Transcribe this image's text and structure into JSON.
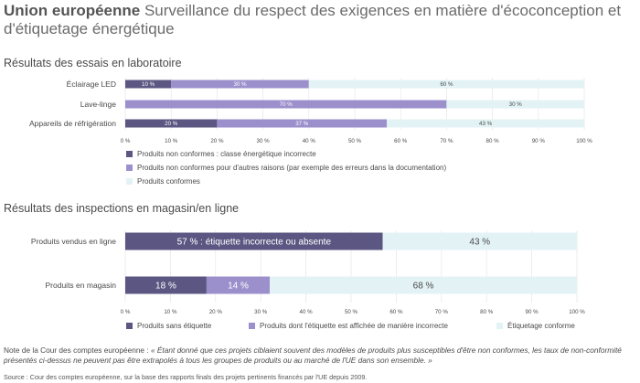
{
  "header": {
    "title_bold": "Union européenne",
    "title_rest": " Surveillance du respect des exigences en matière d'écoconception et d'étiquetage énergétique"
  },
  "colors": {
    "dark": "#5b5682",
    "medium": "#9c90cc",
    "light": "#e3f3f5",
    "label_light": "#ffffff",
    "label_dark": "#4a4a4a"
  },
  "chart_data": [
    {
      "type": "bar",
      "orientation": "horizontal",
      "stacked": true,
      "title": "Résultats des essais en laboratoire",
      "categories": [
        "Éclairage LED",
        "Lave-linge",
        "Appareils de réfrigération"
      ],
      "series": [
        {
          "name": "Produits non conformes : classe énergétique incorrecte",
          "values": [
            10,
            0,
            20
          ],
          "labels": [
            "10 %",
            "",
            "20 %"
          ]
        },
        {
          "name": "Produits non conformes pour d'autres raisons (par exemple des erreurs dans la documentation)",
          "values": [
            30,
            70,
            37
          ],
          "labels": [
            "30 %",
            "70 %",
            "37 %"
          ]
        },
        {
          "name": "Produits conformes",
          "values": [
            60,
            30,
            43
          ],
          "labels": [
            "60 %",
            "30 %",
            "43 %"
          ]
        }
      ],
      "xlim": [
        0,
        100
      ],
      "ticks": [
        "0 %",
        "10 %",
        "20 %",
        "30 %",
        "40 %",
        "50 %",
        "60 %",
        "70 %",
        "80 %",
        "90 %",
        "100 %"
      ],
      "legend_position": "bottom"
    },
    {
      "type": "bar",
      "orientation": "horizontal",
      "stacked": true,
      "title": "Résultats des inspections en magasin/en ligne",
      "categories": [
        "Produits vendus en ligne",
        "Produits en magasin"
      ],
      "series": [
        {
          "name": "Produits sans étiquette",
          "values": [
            57,
            18
          ],
          "labels": [
            "57 % : étiquette incorrecte ou absente",
            "18 %"
          ]
        },
        {
          "name": "Produits dont l'étiquette est affichée de manière incorrecte",
          "values": [
            0,
            14
          ],
          "labels": [
            "",
            "14 %"
          ]
        },
        {
          "name": "Étiquetage conforme",
          "values": [
            43,
            68
          ],
          "labels": [
            "43 %",
            "68 %"
          ]
        }
      ],
      "xlim": [
        0,
        100
      ],
      "ticks": [
        "0 %",
        "10 %",
        "20 %",
        "30 %",
        "40 %",
        "50 %",
        "60 %",
        "70 %",
        "80 %",
        "90 %",
        "100 %"
      ],
      "legend_position": "bottom"
    }
  ],
  "note": {
    "prefix": "Note de la Cour des comptes européenne : ",
    "quote": "« Étant donné que ces projets ciblaient souvent des modèles de produits plus susceptibles d'être non conformes, les taux de non-conformité présentés ci-dessus ne peuvent pas être extrapolés à tous les groupes de produits ou au marché de l'UE dans son ensemble. »"
  },
  "source": "Source : Cour des comptes européenne, sur la base des rapports finals des projets pertinents financés par l'UE depuis 2009."
}
